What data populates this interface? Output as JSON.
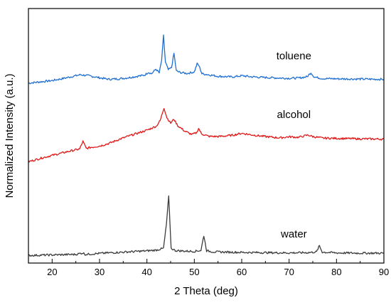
{
  "chart_data": {
    "type": "line",
    "xlabel": "2 Theta (deg)",
    "ylabel": "Normalized Intensity (a.u.)",
    "xlim": [
      15,
      90
    ],
    "ylim": [
      0,
      1
    ],
    "xticks": [
      20,
      30,
      40,
      50,
      60,
      70,
      80,
      90
    ],
    "grid": false,
    "series": [
      {
        "name": "toluene",
        "color": "#1f6fd1",
        "x": [
          15,
          18,
          20,
          22,
          24,
          26,
          28,
          30,
          32,
          34,
          36,
          38,
          39.5,
          40.3,
          41,
          41.9,
          42.6,
          43.1,
          43.5,
          43.9,
          44.5,
          45.2,
          45.7,
          46.2,
          47,
          48.5,
          50,
          50.6,
          51,
          51.6,
          53,
          55,
          58,
          60,
          62,
          65,
          68,
          70,
          72,
          73.8,
          74.6,
          75.3,
          77,
          80,
          85,
          90
        ],
        "y": [
          0.707,
          0.713,
          0.717,
          0.724,
          0.732,
          0.74,
          0.735,
          0.728,
          0.722,
          0.724,
          0.728,
          0.734,
          0.738,
          0.75,
          0.744,
          0.762,
          0.747,
          0.795,
          0.893,
          0.79,
          0.759,
          0.768,
          0.824,
          0.755,
          0.749,
          0.745,
          0.751,
          0.783,
          0.775,
          0.744,
          0.74,
          0.734,
          0.731,
          0.736,
          0.732,
          0.729,
          0.727,
          0.726,
          0.727,
          0.732,
          0.748,
          0.731,
          0.725,
          0.724,
          0.723,
          0.722
        ]
      },
      {
        "name": "alcohol",
        "color": "#e01818",
        "x": [
          15,
          18,
          20,
          22,
          24,
          25.8,
          26.5,
          27.2,
          28,
          30,
          32,
          34,
          36,
          38,
          40,
          42,
          42.8,
          43.6,
          44.2,
          45,
          45.7,
          46.5,
          48,
          49.5,
          50.5,
          50.9,
          51.5,
          53,
          55,
          58,
          60,
          62,
          65,
          68,
          70,
          72,
          74,
          75,
          77,
          80,
          85,
          90
        ],
        "y": [
          0.398,
          0.414,
          0.423,
          0.432,
          0.441,
          0.448,
          0.478,
          0.45,
          0.454,
          0.46,
          0.47,
          0.485,
          0.498,
          0.51,
          0.522,
          0.538,
          0.56,
          0.61,
          0.572,
          0.55,
          0.565,
          0.54,
          0.518,
          0.505,
          0.512,
          0.53,
          0.508,
          0.498,
          0.497,
          0.502,
          0.51,
          0.504,
          0.497,
          0.492,
          0.496,
          0.494,
          0.503,
          0.497,
          0.491,
          0.49,
          0.488,
          0.487
        ]
      },
      {
        "name": "water",
        "color": "#3c3c3c",
        "x": [
          15,
          20,
          25,
          26.5,
          27,
          30,
          35,
          38,
          40,
          42,
          43.5,
          44.1,
          44.6,
          45.1,
          46,
          48,
          50,
          51.4,
          52,
          52.6,
          54,
          57,
          60,
          65,
          70,
          74,
          75.8,
          76.4,
          77,
          80,
          85,
          90
        ],
        "y": [
          0.03,
          0.032,
          0.034,
          0.04,
          0.034,
          0.038,
          0.043,
          0.046,
          0.048,
          0.051,
          0.058,
          0.15,
          0.262,
          0.058,
          0.049,
          0.047,
          0.046,
          0.05,
          0.108,
          0.048,
          0.044,
          0.043,
          0.042,
          0.041,
          0.04,
          0.041,
          0.044,
          0.068,
          0.043,
          0.04,
          0.039,
          0.039
        ]
      }
    ],
    "annotations": [
      {
        "text": "toluene",
        "x": 71,
        "y": 0.8
      },
      {
        "text": "alcohol",
        "x": 71,
        "y": 0.57
      },
      {
        "text": "water",
        "x": 71,
        "y": 0.1
      }
    ]
  }
}
